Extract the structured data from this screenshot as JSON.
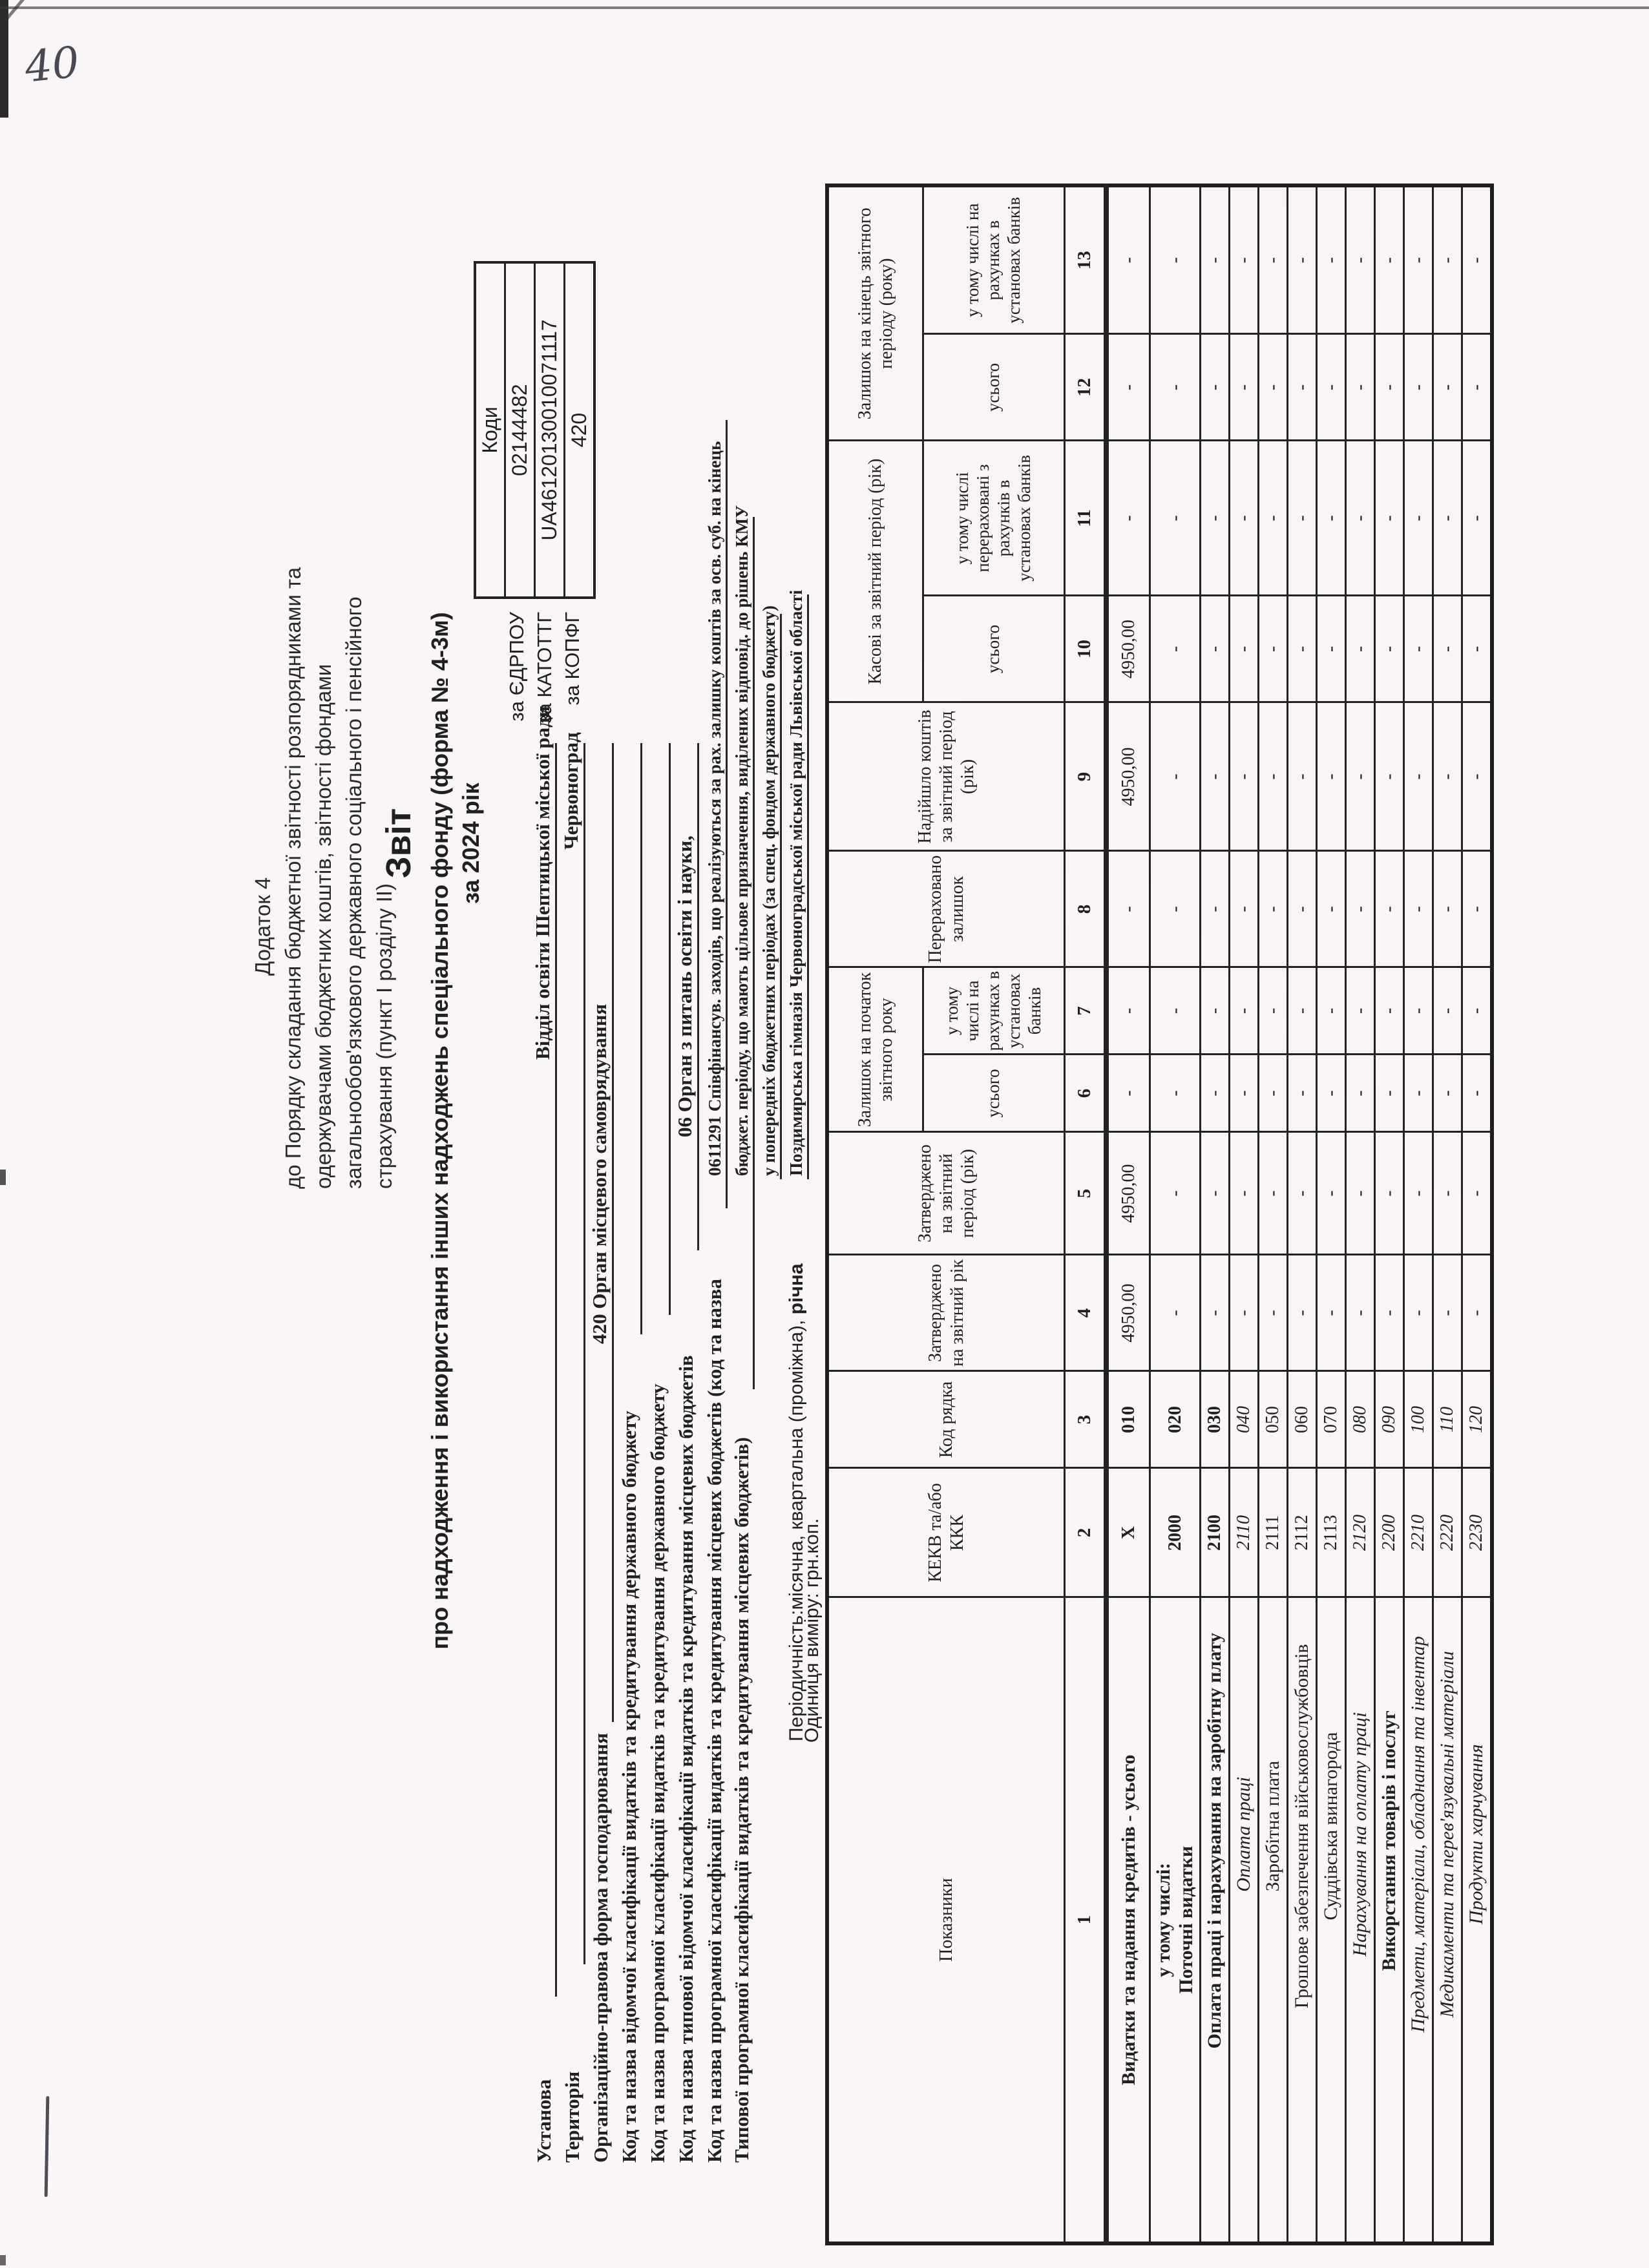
{
  "page": {
    "handwritten_number": "40"
  },
  "appendix": {
    "title": "Додаток 4",
    "lines": [
      "до Порядку складання бюджетної звітності  розпорядниками та",
      "одержувачами бюджетних коштів, звітності фондами",
      "загальнообов'язкового державного соціального і пенсійного",
      "страхування (пункт I розділу II)"
    ]
  },
  "codes_box": {
    "title": "Коди",
    "rows": [
      {
        "label": "за ЄДРПОУ",
        "value": "02144482"
      },
      {
        "label": "за КАТОТТГ",
        "value": "UA46120130010071117"
      },
      {
        "label": "за КОПФГ",
        "value": "420"
      }
    ]
  },
  "title_block": {
    "title": "Звіт",
    "subtitle": "про надходження і використання інших надходжень спеціального фонду (форма  № 4-3м)",
    "year": "за 2024 рік"
  },
  "fields": {
    "ustanova": {
      "label": "Установа",
      "value": "Відділ освіти Шептицької міської ради"
    },
    "terytoriia": {
      "label": "Територія",
      "value": "Червоноград"
    },
    "org_forma": {
      "label": "Організаційно-правова форма господарювання",
      "value": "420 Орган місцевого самоврядування"
    },
    "vidomcha_derzh": {
      "label": "Код та назва відомчої класифікації видатків та кредитування державного бюджету"
    },
    "prohramna_derzh": {
      "label": "Код та назва програмної класифікації видатків та кредитування державного бюджету"
    },
    "typova_vidomcha_mists": {
      "label": "Код та назва типової відомчої класифікації видатків та кредитування  місцевих бюджетів",
      "value": "06 Орган з питань освіти і науки,"
    },
    "prohramna_mists_1": {
      "label": "Код та назва програмної класифікації видатків та кредитування місцевих бюджетів (код та назва",
      "value": "0611291 Співфінансув. заходів, що реалізуються за рах. залишку коштів за осв. суб. на кінець"
    },
    "prohramna_mists_2": {
      "label": "Типової програмної класифікації видатків та кредитування місцевих бюджетів)",
      "value": "бюджет. періоду, що мають цільове призначення, виділених відповід. до рішень КМУ"
    },
    "prohramna_mists_3": {
      "value": "у попередніх бюджетних періодах (за спец. фондом державного бюджету)"
    },
    "zaklad": {
      "value": "Поздимирська гімназія Червоноградської міської ради Львівської області"
    },
    "periodychnist": {
      "label": "Періодичність:місячна, квартальна (проміжна), ",
      "bold_value": "річна"
    },
    "odynytsia": {
      "label": "Одиниця виміру:  грн.коп."
    }
  },
  "table": {
    "headers": {
      "pokaznyky": "Показники",
      "kekv": "КЕКВ та/або ККК",
      "kod_riadka": "Код рядка",
      "zatverdzheno_rik": "Затверджено на звітний рік",
      "zatverdzheno_period": "Затверджено на звітний період (рік)",
      "zalyshok_pochatok": "Залишок на початок звітного року",
      "usoho": "усього",
      "u_t_ch_na_rakhunkakh": "у тому числі на рахунках в установах банків",
      "pererakhovano": "Перераховано залишок",
      "nadiishlo": "Надійшло коштів за звітний період (рік)",
      "kasovi": "Касові за звітний період (рік)",
      "u_t_ch_pererakhovani": "у тому числі перераховані з рахунків в установах банків",
      "zalyshok_kinets": "Залишок на кінець звітного періоду (року)"
    },
    "col_numbers": [
      "1",
      "2",
      "3",
      "4",
      "5",
      "6",
      "7",
      "8",
      "9",
      "10",
      "11",
      "12",
      "13"
    ],
    "rows": [
      {
        "label": "Видатки та надання кредитів  - усього",
        "ls": "c",
        "kekv": "X",
        "ks": "b",
        "kod": "010",
        "v": [
          "4950,00",
          "4950,00",
          "-",
          "-",
          "-",
          "4950,00",
          "4950,00",
          "-",
          "-",
          "-"
        ]
      },
      {
        "label": "у тому числі:",
        "label2": "Поточні видатки",
        "ls": "c",
        "kekv": "2000",
        "ks": "b",
        "kod": "020",
        "v": [
          "-",
          "-",
          "-",
          "-",
          "-",
          "-",
          "-",
          "-",
          "-",
          "-"
        ]
      },
      {
        "label": "Оплата праці і нарахування на заробітну плату",
        "ls": "b",
        "kekv": "2100",
        "ks": "b",
        "kod": "030",
        "v": [
          "-",
          "-",
          "-",
          "-",
          "-",
          "-",
          "-",
          "-",
          "-",
          "-"
        ]
      },
      {
        "label": "Оплата праці",
        "ls": "i",
        "kekv": "2110",
        "ks": "i",
        "kod": "040",
        "v": [
          "-",
          "-",
          "-",
          "-",
          "-",
          "-",
          "-",
          "-",
          "-",
          "-"
        ]
      },
      {
        "label": "Заробітна плата",
        "ls": "p",
        "kekv": "2111",
        "ks": "p",
        "kod": "050",
        "v": [
          "-",
          "-",
          "-",
          "-",
          "-",
          "-",
          "-",
          "-",
          "-",
          "-"
        ]
      },
      {
        "label": "Грошове забезпечення військовослужбовців",
        "ls": "p",
        "kekv": "2112",
        "ks": "p",
        "kod": "060",
        "v": [
          "-",
          "-",
          "-",
          "-",
          "-",
          "-",
          "-",
          "-",
          "-",
          "-"
        ]
      },
      {
        "label": "Суддівська винагорода",
        "ls": "p",
        "kekv": "2113",
        "ks": "p",
        "kod": "070",
        "v": [
          "-",
          "-",
          "-",
          "-",
          "-",
          "-",
          "-",
          "-",
          "-",
          "-"
        ]
      },
      {
        "label": "Нарахування на оплату праці",
        "ls": "i",
        "kekv": "2120",
        "ks": "i",
        "kod": "080",
        "v": [
          "-",
          "-",
          "-",
          "-",
          "-",
          "-",
          "-",
          "-",
          "-",
          "-"
        ]
      },
      {
        "label": "Викорстання товарів і послуг",
        "ls": "b",
        "kekv": "2200",
        "ks": "i",
        "kod": "090",
        "v": [
          "-",
          "-",
          "-",
          "-",
          "-",
          "-",
          "-",
          "-",
          "-",
          "-"
        ]
      },
      {
        "label": "Предмети, матеріали, обладнання та інвентар",
        "ls": "i",
        "kekv": "2210",
        "ks": "i",
        "kod": "100",
        "v": [
          "-",
          "-",
          "-",
          "-",
          "-",
          "-",
          "-",
          "-",
          "-",
          "-"
        ]
      },
      {
        "label": "Медикаменти та перев'язувальні матеріали",
        "ls": "i",
        "kekv": "2220",
        "ks": "i",
        "kod": "110",
        "v": [
          "-",
          "-",
          "-",
          "-",
          "-",
          "-",
          "-",
          "-",
          "-",
          "-"
        ]
      },
      {
        "label": "Продукти харчування",
        "ls": "i",
        "kekv": "2230",
        "ks": "i",
        "kod": "120",
        "v": [
          "-",
          "-",
          "-",
          "-",
          "-",
          "-",
          "-",
          "-",
          "-",
          "-"
        ]
      }
    ]
  }
}
